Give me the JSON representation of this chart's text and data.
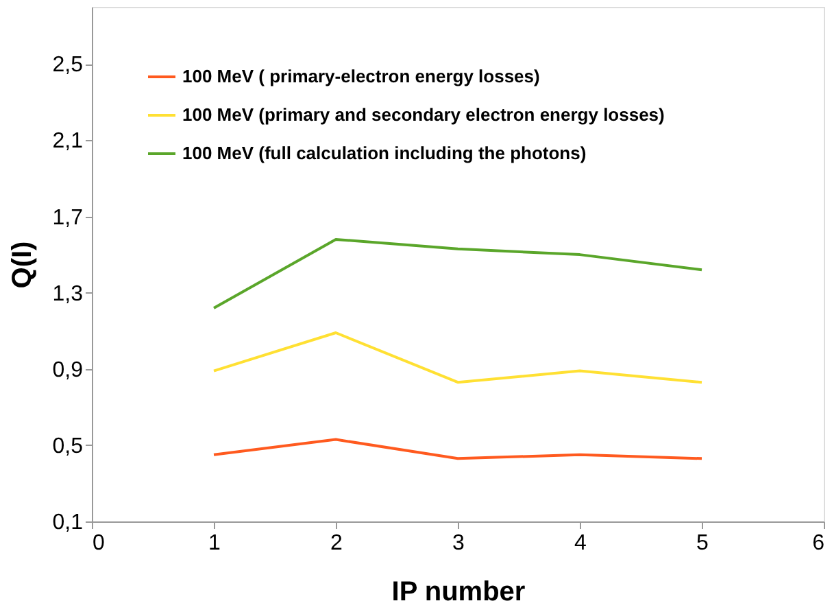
{
  "chart_data": {
    "type": "line",
    "xlabel": "IP number",
    "ylabel": "Q(I)",
    "x": [
      1,
      2,
      3,
      4,
      5
    ],
    "series": [
      {
        "name": "100 MeV ( primary-electron energy losses)",
        "color": "#ff5a1f",
        "values": [
          0.45,
          0.53,
          0.43,
          0.45,
          0.43
        ]
      },
      {
        "name": "100 MeV  (primary and secondary electron energy losses)",
        "color": "#ffe033",
        "values": [
          0.89,
          1.09,
          0.83,
          0.89,
          0.83
        ]
      },
      {
        "name": "100 MeV  (full calculation including the photons)",
        "color": "#5aa62a",
        "values": [
          1.22,
          1.58,
          1.53,
          1.5,
          1.42
        ]
      }
    ],
    "xlim": [
      0,
      6
    ],
    "xticks": [
      0,
      1,
      2,
      3,
      4,
      5,
      6
    ],
    "ylim": [
      0.1,
      2.8
    ],
    "yticks": [
      {
        "value": 0.1,
        "label": "0,1"
      },
      {
        "value": 0.5,
        "label": "0,5"
      },
      {
        "value": 0.9,
        "label": "0,9"
      },
      {
        "value": 1.3,
        "label": "1,3"
      },
      {
        "value": 1.7,
        "label": "1,7"
      },
      {
        "value": 2.1,
        "label": "2,1"
      },
      {
        "value": 2.5,
        "label": "2,5"
      }
    ],
    "grid": false,
    "legend": "top left",
    "marker": "none",
    "line_style": "solid"
  }
}
